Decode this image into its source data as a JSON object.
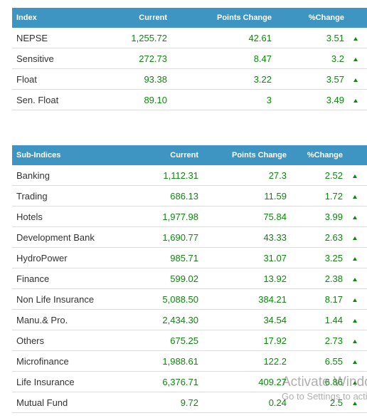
{
  "index_table": {
    "headers": [
      "Index",
      "Current",
      "Points Change",
      "%Change"
    ],
    "rows": [
      {
        "name": "NEPSE",
        "current": "1,255.72",
        "points_change": "42.61",
        "pct_change": "3.51"
      },
      {
        "name": "Sensitive",
        "current": "272.73",
        "points_change": "8.47",
        "pct_change": "3.2"
      },
      {
        "name": "Float",
        "current": "93.38",
        "points_change": "3.22",
        "pct_change": "3.57"
      },
      {
        "name": "Sen. Float",
        "current": "89.10",
        "points_change": "3",
        "pct_change": "3.49"
      }
    ]
  },
  "sub_indices_table": {
    "headers": [
      "Sub-Indices",
      "Current",
      "Points Change",
      "%Change"
    ],
    "rows": [
      {
        "name": "Banking",
        "current": "1,112.31",
        "points_change": "27.3",
        "pct_change": "2.52"
      },
      {
        "name": "Trading",
        "current": "686.13",
        "points_change": "11.59",
        "pct_change": "1.72"
      },
      {
        "name": "Hotels",
        "current": "1,977.98",
        "points_change": "75.84",
        "pct_change": "3.99"
      },
      {
        "name": "Development Bank",
        "current": "1,690.77",
        "points_change": "43.33",
        "pct_change": "2.63"
      },
      {
        "name": "HydroPower",
        "current": "985.71",
        "points_change": "31.07",
        "pct_change": "3.25"
      },
      {
        "name": "Finance",
        "current": "599.02",
        "points_change": "13.92",
        "pct_change": "2.38"
      },
      {
        "name": "Non Life Insurance",
        "current": "5,088.50",
        "points_change": "384.21",
        "pct_change": "8.17"
      },
      {
        "name": "Manu.& Pro.",
        "current": "2,434.30",
        "points_change": "34.54",
        "pct_change": "1.44"
      },
      {
        "name": "Others",
        "current": "675.25",
        "points_change": "17.92",
        "pct_change": "2.73"
      },
      {
        "name": "Microfinance",
        "current": "1,988.61",
        "points_change": "122.2",
        "pct_change": "6.55"
      },
      {
        "name": "Life Insurance",
        "current": "6,376.71",
        "points_change": "409.27",
        "pct_change": "6.86"
      },
      {
        "name": "Mutual Fund",
        "current": "9.72",
        "points_change": "0.24",
        "pct_change": "2.5"
      }
    ]
  },
  "trend_icon": "up-arrow-icon",
  "colors": {
    "header_bg": "#3f95c1",
    "header_text": "#ffffff",
    "positive": "#0a8a0a",
    "label_text": "#333333"
  },
  "watermark": {
    "line1": "Activate Windows",
    "line2": "Go to Settings to activate Windows."
  }
}
